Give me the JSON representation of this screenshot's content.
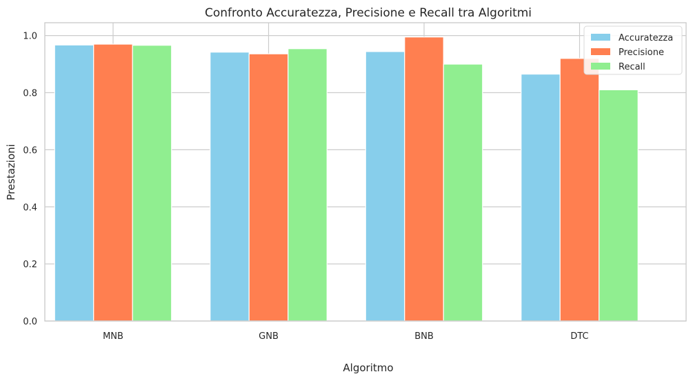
{
  "chart_data": {
    "type": "bar",
    "title": "Confronto Accuratezza, Precisione e Recall tra Algoritmi",
    "xlabel": "Algoritmo",
    "ylabel": "Prestazioni",
    "categories": [
      "MNB",
      "GNB",
      "BNB",
      "DTC"
    ],
    "series": [
      {
        "name": "Accuratezza",
        "color": "#87CEEB",
        "values": [
          0.967,
          0.942,
          0.944,
          0.865
        ]
      },
      {
        "name": "Precisione",
        "color": "#FF7F50",
        "values": [
          0.97,
          0.936,
          0.995,
          0.92
        ]
      },
      {
        "name": "Recall",
        "color": "#90EE90",
        "values": [
          0.966,
          0.954,
          0.9,
          0.81
        ]
      }
    ],
    "ylim": [
      0,
      1.045
    ],
    "yticks": [
      "0.0",
      "0.2",
      "0.4",
      "0.6",
      "0.8",
      "1.0"
    ],
    "grid": true,
    "legend_position": "top-right"
  }
}
